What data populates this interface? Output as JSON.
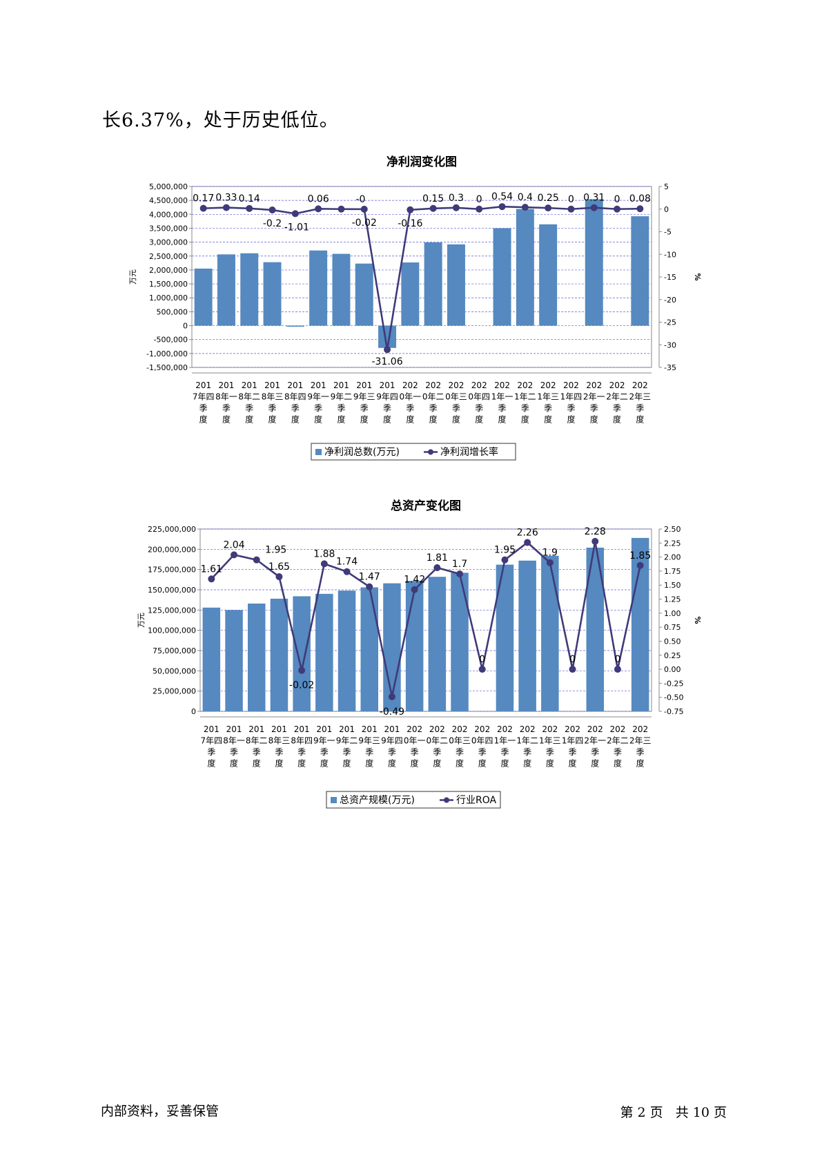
{
  "page": {
    "intro_text": "长6.37%，处于历史低位。",
    "footer_left": "内部资料，妥善保管",
    "footer_right": "第 2 页   共 10 页"
  },
  "colors": {
    "bar": "#5589c0",
    "line": "#3f3a78",
    "grid": "#5b5bd6",
    "axis": "#888888"
  },
  "chart_data": [
    {
      "type": "bar",
      "title": "净利润变化图",
      "categories": [
        "2017年四季度",
        "2018年一季度",
        "2018年二季度",
        "2018年三季度",
        "2018年四季度",
        "2019年一季度",
        "2019年二季度",
        "2019年三季度",
        "2019年四季度",
        "2020年一季度",
        "2020年二季度",
        "2020年三季度",
        "2020年四季度",
        "2021年一季度",
        "2021年二季度",
        "2021年三季度",
        "2021年四季度",
        "2022年一季度",
        "2022年二季度",
        "2022年三季度"
      ],
      "ylabel": "万元",
      "y2label": "%",
      "ylim": [
        -1500000,
        5000000
      ],
      "y2lim": [
        -35,
        5
      ],
      "yticks": [
        -1500000,
        -1000000,
        -500000,
        0,
        500000,
        1000000,
        1500000,
        2000000,
        2500000,
        3000000,
        3500000,
        4000000,
        4500000,
        5000000
      ],
      "ytick_labels": [
        "-1,500,000",
        "-1,000,000",
        "-500,000",
        "0",
        "500,000",
        "1,000,000",
        "1,500,000",
        "2,000,000",
        "2,500,000",
        "3,000,000",
        "3,500,000",
        "4,000,000",
        "4,500,000",
        "5,000,000"
      ],
      "y2ticks": [
        -35,
        -30,
        -25,
        -20,
        -15,
        -10,
        -5,
        0,
        5
      ],
      "y2tick_labels": [
        "-35",
        "-30",
        "-25",
        "-20",
        "-15",
        "-10",
        "-5",
        "0",
        "5"
      ],
      "series": [
        {
          "name": "净利润总数(万元)",
          "type": "bar",
          "values": [
            2050000,
            2560000,
            2600000,
            2280000,
            -25000,
            2700000,
            2580000,
            2230000,
            -800000,
            2270000,
            2990000,
            2920000,
            null,
            3500000,
            4190000,
            3640000,
            null,
            4540000,
            null,
            3930000
          ]
        },
        {
          "name": "净利润增长率",
          "type": "line",
          "values": [
            0.17,
            0.33,
            0.14,
            -0.2,
            -1.01,
            0.06,
            0,
            -0.02,
            -31.06,
            -0.16,
            0.15,
            0.3,
            0,
            0.54,
            0.4,
            0.25,
            0,
            0.31,
            0,
            0.08
          ],
          "labels": [
            "0.17",
            "0.33",
            "0.14",
            "-0.2",
            "-1.01",
            "0.06",
            "-0",
            "-0.02",
            "-31.06",
            "-0.16",
            "0.15",
            "0.3",
            "0",
            "0.54",
            "0.4",
            "0.25",
            "0",
            "0.31",
            "0",
            "0.08"
          ]
        }
      ],
      "grid": true,
      "legend": "bottom"
    },
    {
      "type": "bar",
      "title": "总资产变化图",
      "categories": [
        "2017年四季度",
        "2018年一季度",
        "2018年二季度",
        "2018年三季度",
        "2018年四季度",
        "2019年一季度",
        "2019年二季度",
        "2019年三季度",
        "2019年四季度",
        "2020年一季度",
        "2020年二季度",
        "2020年三季度",
        "2020年四季度",
        "2021年一季度",
        "2021年二季度",
        "2021年三季度",
        "2021年四季度",
        "2022年一季度",
        "2022年二季度",
        "2022年三季度"
      ],
      "ylabel": "万元",
      "y2label": "%",
      "ylim": [
        0,
        225000000
      ],
      "y2lim": [
        -0.75,
        2.5
      ],
      "yticks": [
        0,
        25000000,
        50000000,
        75000000,
        100000000,
        125000000,
        150000000,
        175000000,
        200000000,
        225000000
      ],
      "ytick_labels": [
        "0",
        "25,000,000",
        "50,000,000",
        "75,000,000",
        "100,000,000",
        "125,000,000",
        "150,000,000",
        "175,000,000",
        "200,000,000",
        "225,000,000"
      ],
      "y2ticks": [
        -0.75,
        -0.5,
        -0.25,
        0,
        0.25,
        0.5,
        0.75,
        1,
        1.25,
        1.5,
        1.75,
        2,
        2.25,
        2.5
      ],
      "y2tick_labels": [
        "-0.75",
        "-0.50",
        "-0.25",
        "0.00",
        "0.25",
        "0.50",
        "0.75",
        "1.00",
        "1.25",
        "1.50",
        "1.75",
        "2.00",
        "2.25",
        "2.50"
      ],
      "series": [
        {
          "name": "总资产规模(万元)",
          "type": "bar",
          "values": [
            128000000,
            125000000,
            133000000,
            139000000,
            142000000,
            145000000,
            149000000,
            153000000,
            158000000,
            161000000,
            166000000,
            171000000,
            null,
            181000000,
            186000000,
            192000000,
            null,
            202000000,
            null,
            214000000
          ]
        },
        {
          "name": "行业ROA",
          "type": "line",
          "values": [
            1.61,
            2.04,
            1.95,
            1.65,
            -0.02,
            1.88,
            1.74,
            1.47,
            -0.49,
            1.42,
            1.81,
            1.7,
            0,
            1.95,
            2.26,
            1.9,
            0,
            2.28,
            0,
            1.85
          ],
          "labels": [
            "1.61",
            "2.04",
            "1.95",
            "1.65",
            "-0.02",
            "1.88",
            "1.74",
            "1.47",
            "-0.49",
            "1.42",
            "1.81",
            "1.7",
            "0",
            "1.95",
            "2.26",
            "1.9",
            "0",
            "2.28",
            "0",
            "1.85"
          ]
        }
      ],
      "grid": true,
      "legend": "bottom"
    }
  ]
}
